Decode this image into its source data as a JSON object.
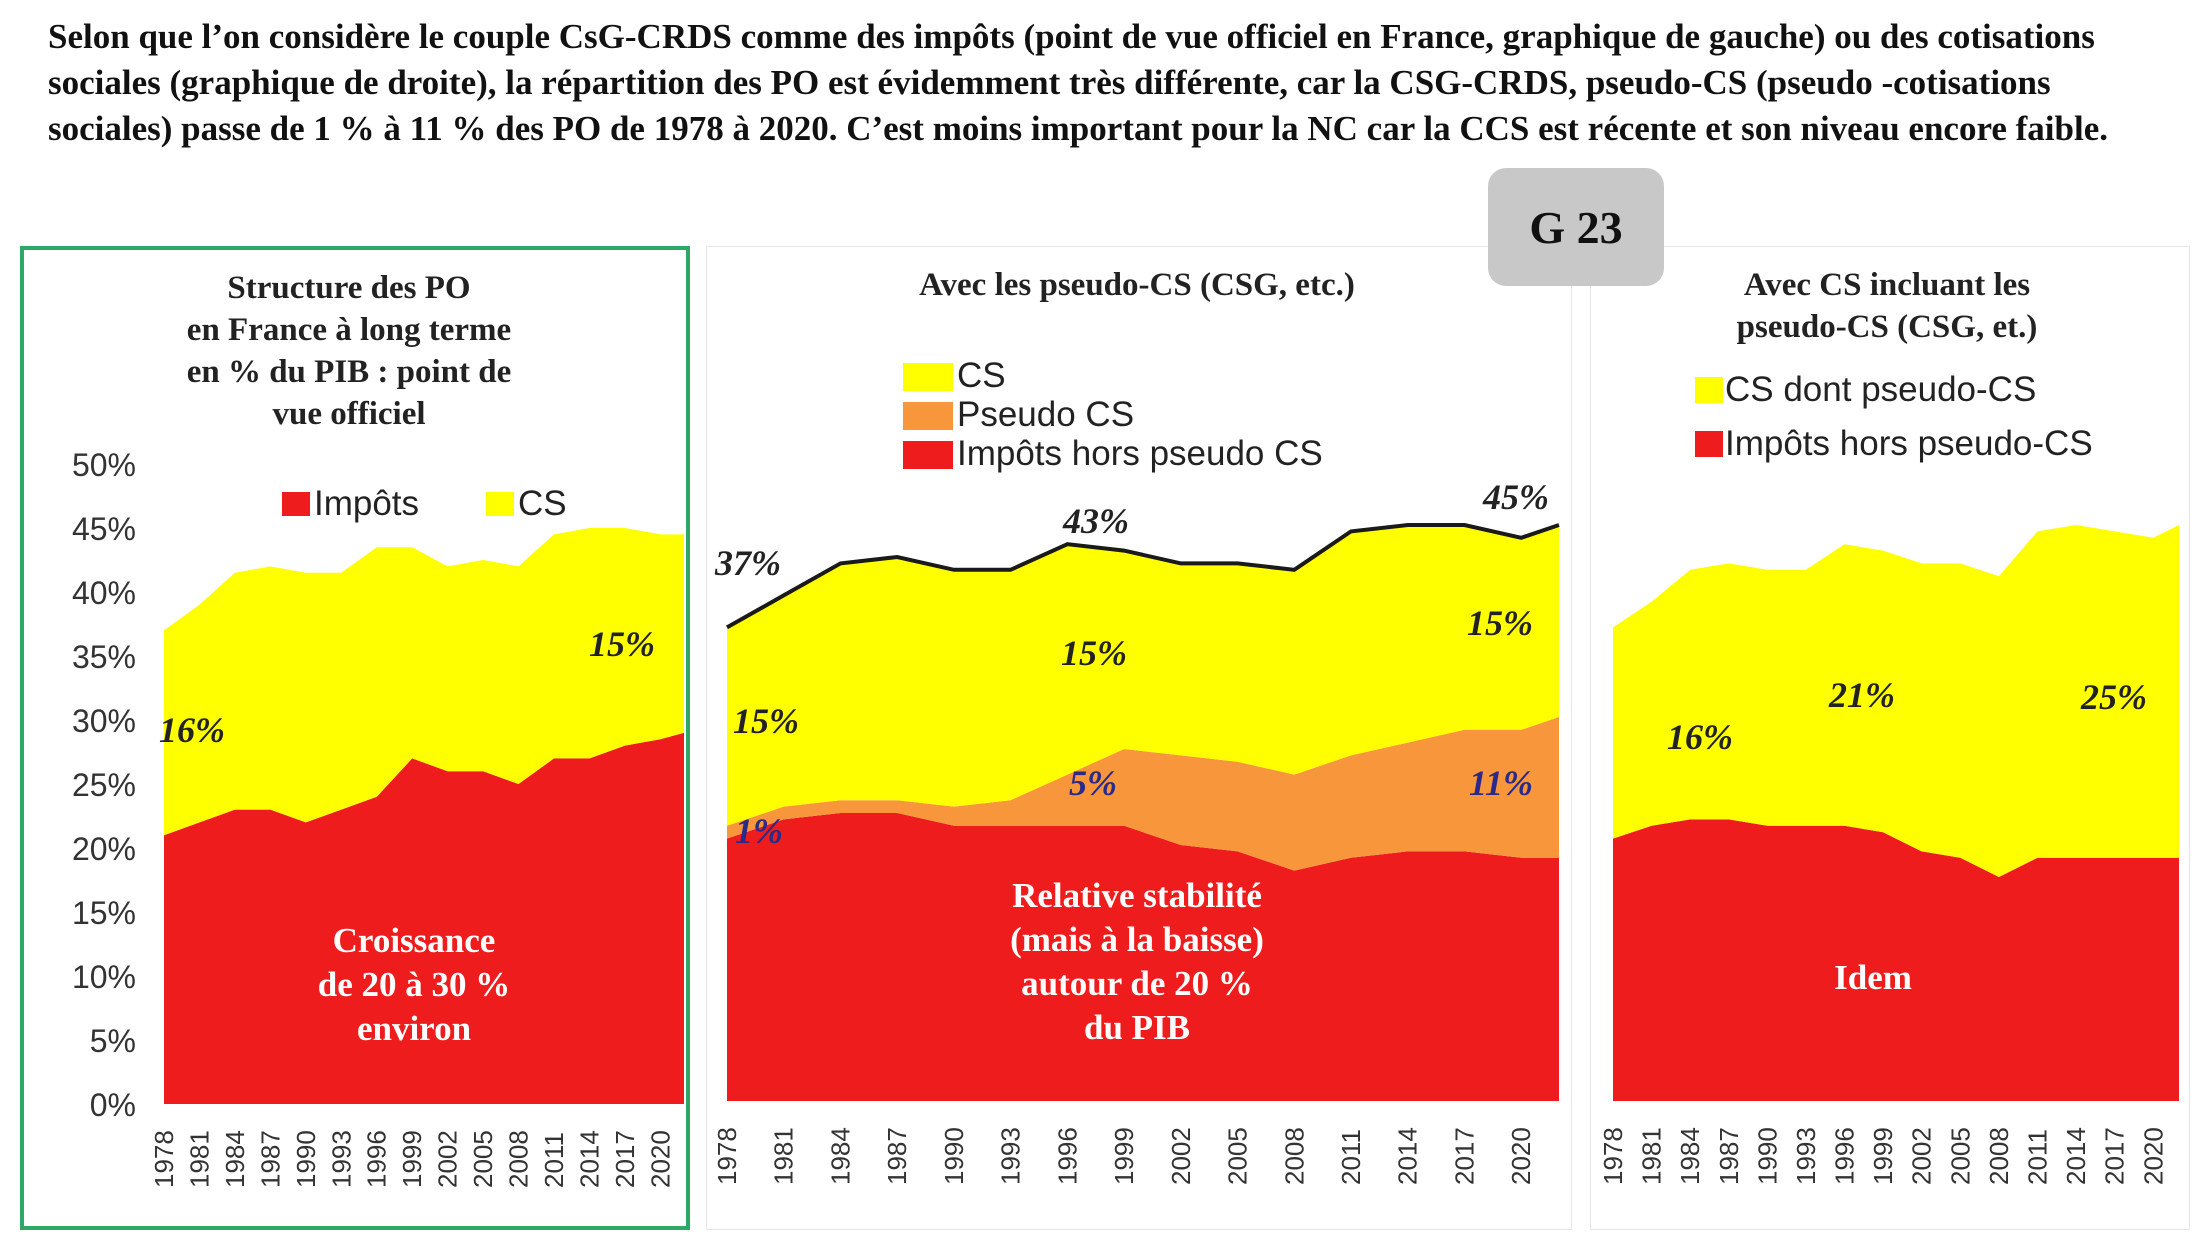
{
  "intro_text": "Selon que l’on considère le couple CsG-CRDS comme des impôts (point de vue officiel en France, graphique de gauche) ou des cotisations sociales (graphique de droite), la répartition des PO est évidemment très différente, car la CSG-CRDS, pseudo-CS (pseudo -cotisations sociales) passe de 1 % à 11 % des PO de 1978 à 2020. C’est moins important pour la NC car la CCS est récente et son niveau encore faible.",
  "badge": "G 23",
  "colors": {
    "red": "#ee1c1c",
    "yellow": "#ffff00",
    "orange": "#f7963a",
    "blue_label": "#2a2a8a",
    "frame_green": "#2ea866"
  },
  "chart_data": [
    {
      "type": "area",
      "title": [
        "Structure des PO",
        "en France à long  terme",
        "en % du PIB : point de",
        "vue officiel"
      ],
      "legend": [
        "Impôts",
        "CS"
      ],
      "legend_position": "top",
      "y_ticks": [
        "50%",
        "45%",
        "40%",
        "35%",
        "30%",
        "25%",
        "20%",
        "15%",
        "10%",
        "5%",
        "0%"
      ],
      "ylim": [
        0,
        50
      ],
      "x_tick_labels": [
        "1978",
        "1981",
        "1984",
        "1987",
        "1990",
        "1993",
        "1996",
        "1999",
        "2002",
        "2005",
        "2008",
        "2011",
        "2014",
        "2017",
        "2020"
      ],
      "years": [
        1978,
        1981,
        1984,
        1987,
        1990,
        1993,
        1996,
        1999,
        2002,
        2005,
        2008,
        2011,
        2014,
        2017,
        2020,
        2022
      ],
      "series": [
        {
          "name": "Impôts",
          "color": "#ee1c1c",
          "values": [
            21,
            22,
            23,
            23,
            22,
            23,
            24,
            27,
            26,
            26,
            25,
            27,
            27,
            28,
            28.5,
            29
          ]
        },
        {
          "name": "CS",
          "color": "#ffff00",
          "values": [
            16,
            17,
            18.5,
            19,
            19.5,
            18.5,
            19.5,
            16.5,
            16,
            16.5,
            17,
            17.5,
            18,
            17,
            16,
            15.5
          ]
        }
      ],
      "annotations": [
        "16%",
        "15%",
        "Croissance",
        "de 20 à 30 %",
        "environ"
      ]
    },
    {
      "type": "area",
      "title": [
        "Avec les pseudo-CS (CSG, etc.)"
      ],
      "legend": [
        "CS",
        "Pseudo CS",
        "Impôts hors pseudo CS"
      ],
      "legend_position": "top-left",
      "ylim": [
        0,
        50
      ],
      "x_tick_labels": [
        "1978",
        "1981",
        "1984",
        "1987",
        "1990",
        "1993",
        "1996",
        "1999",
        "2002",
        "2005",
        "2008",
        "2011",
        "2014",
        "2017",
        "2020"
      ],
      "years": [
        1978,
        1981,
        1984,
        1987,
        1990,
        1993,
        1996,
        1999,
        2002,
        2005,
        2008,
        2011,
        2014,
        2017,
        2020,
        2022
      ],
      "series": [
        {
          "name": "Impôts hors pseudo CS",
          "color": "#ee1c1c",
          "values": [
            20.5,
            22,
            22.5,
            22.5,
            21.5,
            21.5,
            21.5,
            21.5,
            20,
            19.5,
            18,
            19,
            19.5,
            19.5,
            19,
            19
          ]
        },
        {
          "name": "Pseudo CS",
          "color": "#f7963a",
          "values": [
            1,
            1,
            1,
            1,
            1.5,
            2,
            4,
            6,
            7,
            7,
            7.5,
            8,
            8.5,
            9.5,
            10,
            11
          ]
        },
        {
          "name": "CS",
          "color": "#ffff00",
          "values": [
            15.5,
            16.5,
            18.5,
            19,
            18.5,
            18,
            18,
            15.5,
            15,
            15.5,
            16,
            17.5,
            17,
            16,
            15,
            15
          ]
        }
      ],
      "annotations": [
        "37%",
        "43%",
        "45%",
        "15%",
        "15%",
        "15%",
        "1%",
        "5%",
        "11%",
        "Relative stabilité",
        "(mais à la baisse)",
        "autour de 20 %",
        "du PIB"
      ]
    },
    {
      "type": "area",
      "title": [
        "Avec CS incluant les",
        "pseudo-CS (CSG, et.)"
      ],
      "legend": [
        "CS dont pseudo-CS",
        "Impôts hors pseudo-CS"
      ],
      "legend_position": "top",
      "ylim": [
        0,
        50
      ],
      "x_tick_labels": [
        "1978",
        "1981",
        "1984",
        "1987",
        "1990",
        "1993",
        "1996",
        "1999",
        "2002",
        "2005",
        "2008",
        "2011",
        "2014",
        "2017",
        "2020"
      ],
      "years": [
        1978,
        1981,
        1984,
        1987,
        1990,
        1993,
        1996,
        1999,
        2002,
        2005,
        2008,
        2011,
        2014,
        2017,
        2020,
        2022
      ],
      "series": [
        {
          "name": "Impôts hors pseudo-CS",
          "color": "#ee1c1c",
          "values": [
            20.5,
            21.5,
            22,
            22,
            21.5,
            21.5,
            21.5,
            21,
            19.5,
            19,
            17.5,
            19,
            19,
            19,
            19,
            19
          ]
        },
        {
          "name": "CS dont pseudo-CS",
          "color": "#ffff00",
          "values": [
            16.5,
            17.5,
            19.5,
            20,
            20,
            20,
            22,
            22,
            22.5,
            23,
            23.5,
            25.5,
            26,
            25.5,
            25,
            26
          ]
        }
      ],
      "annotations": [
        "16%",
        "21%",
        "25%",
        "Idem"
      ]
    }
  ]
}
